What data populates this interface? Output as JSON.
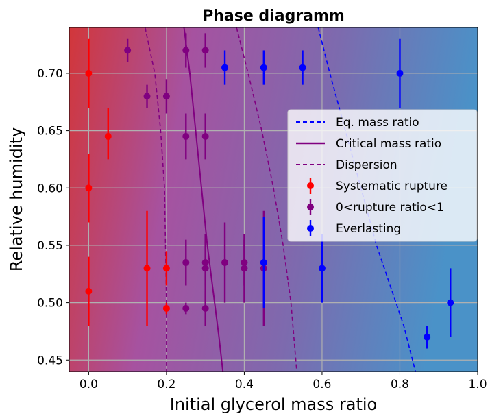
{
  "chart_data": {
    "type": "scatter",
    "title": "Phase diagramm",
    "xlabel": "Initial glycerol mass ratio",
    "ylabel": "Relative humidity",
    "xlim": [
      -0.05,
      1.0
    ],
    "ylim": [
      0.44,
      0.74
    ],
    "xticks": [
      0.0,
      0.2,
      0.4,
      0.6,
      0.8,
      1.0
    ],
    "xtick_labels": [
      "0.0",
      "0.2",
      "0.4",
      "0.6",
      "0.8",
      "1.0"
    ],
    "yticks": [
      0.45,
      0.5,
      0.55,
      0.6,
      0.65,
      0.7
    ],
    "ytick_labels": [
      "0.45",
      "0.50",
      "0.55",
      "0.60",
      "0.65",
      "0.70"
    ],
    "grid": true,
    "legend_position": "center-right",
    "background": "gradient red (left) to purple to blue (right)",
    "series": [
      {
        "name": "Systematic rupture",
        "kind": "errorbar",
        "color": "#ff0000",
        "points": [
          {
            "x": 0.0,
            "y": 0.7,
            "yerr_low": 0.03,
            "yerr_high": 0.03
          },
          {
            "x": 0.0,
            "y": 0.6,
            "yerr_low": 0.03,
            "yerr_high": 0.03
          },
          {
            "x": 0.0,
            "y": 0.51,
            "yerr_low": 0.03,
            "yerr_high": 0.03
          },
          {
            "x": 0.05,
            "y": 0.645,
            "yerr_low": 0.02,
            "yerr_high": 0.025
          },
          {
            "x": 0.15,
            "y": 0.53,
            "yerr_low": 0.05,
            "yerr_high": 0.05
          },
          {
            "x": 0.2,
            "y": 0.53,
            "yerr_low": 0.015,
            "yerr_high": 0.015
          },
          {
            "x": 0.2,
            "y": 0.495,
            "yerr_low": 0.005,
            "yerr_high": 0.005
          }
        ]
      },
      {
        "name": "0<rupture ratio<1",
        "kind": "errorbar",
        "color": "#800080",
        "points": [
          {
            "x": 0.1,
            "y": 0.72,
            "yerr_low": 0.01,
            "yerr_high": 0.01
          },
          {
            "x": 0.15,
            "y": 0.68,
            "yerr_low": 0.01,
            "yerr_high": 0.01
          },
          {
            "x": 0.2,
            "y": 0.68,
            "yerr_low": 0.015,
            "yerr_high": 0.015
          },
          {
            "x": 0.25,
            "y": 0.72,
            "yerr_low": 0.015,
            "yerr_high": 0.015
          },
          {
            "x": 0.3,
            "y": 0.72,
            "yerr_low": 0.015,
            "yerr_high": 0.015
          },
          {
            "x": 0.25,
            "y": 0.645,
            "yerr_low": 0.02,
            "yerr_high": 0.02
          },
          {
            "x": 0.3,
            "y": 0.645,
            "yerr_low": 0.02,
            "yerr_high": 0.02
          },
          {
            "x": 0.25,
            "y": 0.535,
            "yerr_low": 0.02,
            "yerr_high": 0.02
          },
          {
            "x": 0.3,
            "y": 0.535,
            "yerr_low": 0.02,
            "yerr_high": 0.02
          },
          {
            "x": 0.3,
            "y": 0.53,
            "yerr_low": 0.03,
            "yerr_high": 0.03
          },
          {
            "x": 0.35,
            "y": 0.535,
            "yerr_low": 0.035,
            "yerr_high": 0.035
          },
          {
            "x": 0.4,
            "y": 0.535,
            "yerr_low": 0.02,
            "yerr_high": 0.02
          },
          {
            "x": 0.4,
            "y": 0.53,
            "yerr_low": 0.03,
            "yerr_high": 0.03
          },
          {
            "x": 0.45,
            "y": 0.53,
            "yerr_low": 0.05,
            "yerr_high": 0.05
          },
          {
            "x": 0.25,
            "y": 0.495,
            "yerr_low": 0.005,
            "yerr_high": 0.005
          },
          {
            "x": 0.3,
            "y": 0.495,
            "yerr_low": 0.015,
            "yerr_high": 0.015
          }
        ]
      },
      {
        "name": "Everlasting",
        "kind": "errorbar",
        "color": "#0000ff",
        "points": [
          {
            "x": 0.35,
            "y": 0.705,
            "yerr_low": 0.015,
            "yerr_high": 0.015
          },
          {
            "x": 0.45,
            "y": 0.705,
            "yerr_low": 0.015,
            "yerr_high": 0.015
          },
          {
            "x": 0.55,
            "y": 0.705,
            "yerr_low": 0.015,
            "yerr_high": 0.015
          },
          {
            "x": 0.8,
            "y": 0.7,
            "yerr_low": 0.03,
            "yerr_high": 0.03
          },
          {
            "x": 0.45,
            "y": 0.535,
            "yerr_low": 0.04,
            "yerr_high": 0.04
          },
          {
            "x": 0.6,
            "y": 0.53,
            "yerr_low": 0.03,
            "yerr_high": 0.03
          },
          {
            "x": 0.87,
            "y": 0.47,
            "yerr_low": 0.01,
            "yerr_high": 0.01
          },
          {
            "x": 0.93,
            "y": 0.5,
            "yerr_low": 0.03,
            "yerr_high": 0.03
          }
        ]
      },
      {
        "name": "Eq. mass ratio",
        "kind": "line",
        "style": "dashed",
        "color": "#0000ff",
        "x": [
          0.59,
          0.62,
          0.66,
          0.7,
          0.74,
          0.78,
          0.81,
          0.84
        ],
        "y": [
          0.74,
          0.7,
          0.65,
          0.6,
          0.55,
          0.51,
          0.48,
          0.44
        ]
      },
      {
        "name": "Critical mass ratio",
        "kind": "line",
        "style": "solid",
        "color": "#800080",
        "x": [
          0.245,
          0.26,
          0.275,
          0.29,
          0.305,
          0.32,
          0.335,
          0.345
        ],
        "y": [
          0.74,
          0.7,
          0.65,
          0.6,
          0.55,
          0.51,
          0.47,
          0.44
        ]
      },
      {
        "name": "Dispersion",
        "kind": "line",
        "style": "dashed",
        "color": "#800080",
        "x": [
          0.145,
          0.17,
          0.185,
          0.195,
          0.2,
          0.2
        ],
        "y": [
          0.74,
          0.7,
          0.65,
          0.6,
          0.5,
          0.44
        ]
      },
      {
        "name": "",
        "kind": "line",
        "style": "dashed",
        "color": "#800080",
        "x": [
          0.38,
          0.41,
          0.445,
          0.475,
          0.5,
          0.52,
          0.535
        ],
        "y": [
          0.74,
          0.7,
          0.65,
          0.6,
          0.55,
          0.5,
          0.44
        ]
      }
    ],
    "legend": [
      {
        "label": "Eq. mass ratio",
        "marker": "dashed-line",
        "color": "#0000ff"
      },
      {
        "label": "Critical mass ratio",
        "marker": "solid-line",
        "color": "#800080"
      },
      {
        "label": "Dispersion",
        "marker": "dashed-line",
        "color": "#800080"
      },
      {
        "label": "Systematic rupture",
        "marker": "errorbar-point",
        "color": "#ff0000"
      },
      {
        "label": "0<rupture ratio<1",
        "marker": "errorbar-point",
        "color": "#800080"
      },
      {
        "label": "Everlasting",
        "marker": "errorbar-point",
        "color": "#0000ff"
      }
    ]
  }
}
